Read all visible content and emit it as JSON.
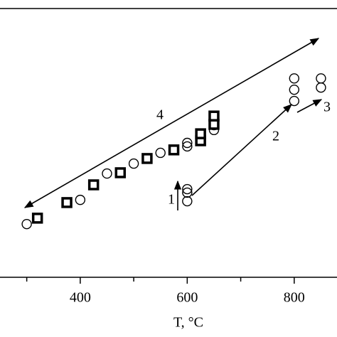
{
  "chart_data": {
    "type": "scatter",
    "x_label": "T, °C",
    "xlim": [
      250,
      880
    ],
    "ylim": [
      0,
      100
    ],
    "xticks": [
      400,
      600,
      800
    ],
    "xminorticks": [
      300,
      500,
      700
    ],
    "series": [
      {
        "marker": "circle",
        "color": "#000000",
        "x": [
          300,
          400,
          450,
          500,
          550,
          600,
          600,
          650,
          650,
          600,
          600,
          600,
          800,
          800,
          800,
          850,
          850
        ],
        "values": [
          19.8,
          28.8,
          38.6,
          42.3,
          46.3,
          48.7,
          50,
          54.8,
          56.6,
          32.8,
          31.5,
          28.3,
          74,
          69.8,
          65.6,
          74,
          70.6
        ]
      },
      {
        "marker": "square",
        "color": "#000000",
        "x": [
          320,
          375,
          425,
          475,
          525,
          575,
          625,
          625,
          650,
          650
        ],
        "values": [
          22,
          27.8,
          34.4,
          38.9,
          44.2,
          47.4,
          50.8,
          53.4,
          56.9,
          60
        ]
      }
    ],
    "annotations": [
      "1",
      "2",
      "3",
      "4"
    ]
  }
}
